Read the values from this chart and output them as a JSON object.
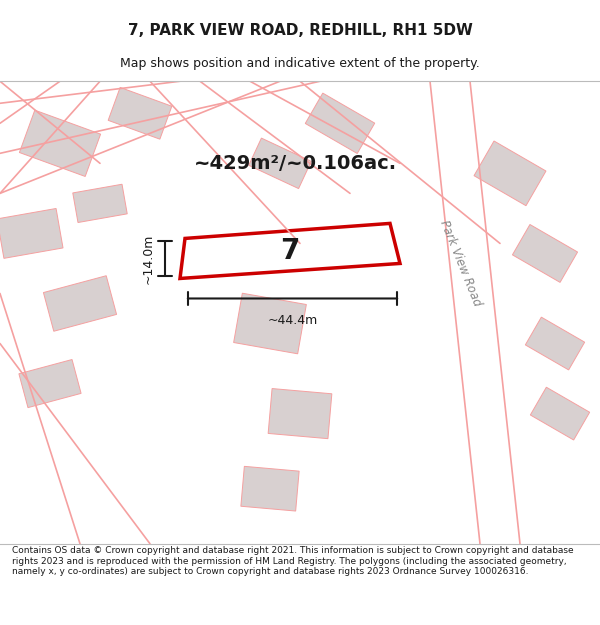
{
  "title_line1": "7, PARK VIEW ROAD, REDHILL, RH1 5DW",
  "title_line2": "Map shows position and indicative extent of the property.",
  "footer_text": "Contains OS data © Crown copyright and database right 2021. This information is subject to Crown copyright and database rights 2023 and is reproduced with the permission of HM Land Registry. The polygons (including the associated geometry, namely x, y co-ordinates) are subject to Crown copyright and database rights 2023 Ordnance Survey 100026316.",
  "area_label": "~429m²/~0.106ac.",
  "property_number": "7",
  "dim_width": "~44.4m",
  "dim_height": "~14.0m",
  "road_label": "Park View Road",
  "bg_color": "#f5f0f0",
  "map_bg": "#ffffff",
  "plot_outline_color": "#cc0000",
  "road_line_color": "#f5a0a0",
  "building_fill": "#d8d0d0",
  "dim_color": "#1a1a1a",
  "title_area_bg": "#ffffff",
  "footer_bg": "#ffffff"
}
